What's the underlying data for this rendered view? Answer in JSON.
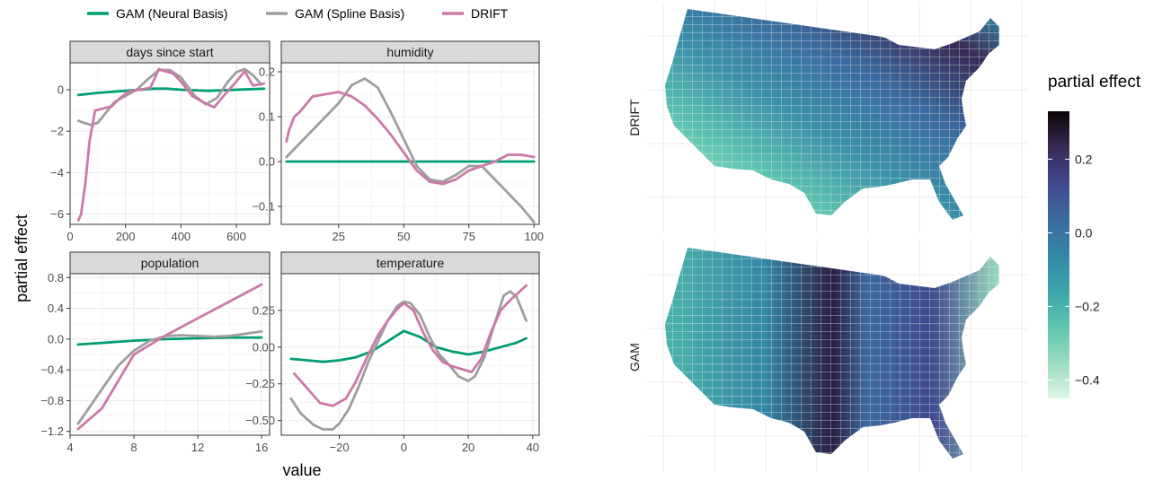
{
  "legend": [
    {
      "label": "GAM (Neural Basis)",
      "color": "#009E73"
    },
    {
      "label": "GAM (Spline Basis)",
      "color": "#9E9E9E"
    },
    {
      "label": "DRIFT",
      "color": "#CC79A7"
    }
  ],
  "axis_titles": {
    "x": "value",
    "y": "partial effect"
  },
  "chart_data": [
    {
      "type": "line",
      "title": "days since start",
      "xlim": [
        0,
        720
      ],
      "ylim": [
        -6.5,
        1.3
      ],
      "xticks": [
        0,
        200,
        400,
        600
      ],
      "xtick_labels": [
        "0",
        "200",
        "400",
        "600"
      ],
      "yticks": [
        0,
        -2,
        -4,
        -6
      ],
      "ytick_labels": [
        "0",
        "−2",
        "−4",
        "−6"
      ],
      "series": [
        {
          "name": "GAM (Neural Basis)",
          "x": [
            30,
            100,
            200,
            300,
            350,
            400,
            500,
            600,
            700
          ],
          "y": [
            -0.25,
            -0.15,
            -0.05,
            0.05,
            0.05,
            0.0,
            -0.05,
            0.0,
            0.05
          ]
        },
        {
          "name": "GAM (Spline Basis)",
          "x": [
            30,
            50,
            75,
            100,
            130,
            160,
            200,
            240,
            280,
            320,
            360,
            400,
            450,
            490,
            530,
            570,
            600,
            630,
            660,
            690
          ],
          "y": [
            -1.5,
            -1.6,
            -1.7,
            -1.6,
            -1.1,
            -0.6,
            -0.3,
            0.0,
            0.5,
            0.95,
            0.95,
            0.6,
            -0.3,
            -0.7,
            -0.4,
            0.4,
            0.85,
            1.0,
            0.7,
            0.25
          ]
        },
        {
          "name": "DRIFT",
          "x": [
            30,
            40,
            55,
            70,
            90,
            120,
            150,
            180,
            210,
            250,
            290,
            320,
            340,
            370,
            400,
            440,
            480,
            520,
            560,
            600,
            630,
            660,
            700
          ],
          "y": [
            -6.3,
            -6.0,
            -4.5,
            -2.5,
            -1.0,
            -0.9,
            -0.8,
            -0.4,
            -0.1,
            0.0,
            0.1,
            1.0,
            0.9,
            0.8,
            0.4,
            -0.3,
            -0.6,
            -0.85,
            -0.2,
            0.4,
            0.9,
            0.2,
            0.3
          ]
        }
      ]
    },
    {
      "type": "line",
      "title": "humidity",
      "xlim": [
        3,
        102
      ],
      "ylim": [
        -0.14,
        0.22
      ],
      "xticks": [
        25,
        50,
        75,
        100
      ],
      "xtick_labels": [
        "25",
        "50",
        "75",
        "100"
      ],
      "yticks": [
        0.2,
        0.1,
        0.0,
        -0.1
      ],
      "ytick_labels": [
        "0.2",
        "0.1",
        "0.0",
        "−0.1"
      ],
      "series": [
        {
          "name": "GAM (Neural Basis)",
          "x": [
            5,
            100
          ],
          "y": [
            0.0,
            0.0
          ]
        },
        {
          "name": "GAM (Spline Basis)",
          "x": [
            5,
            10,
            15,
            20,
            25,
            30,
            35,
            40,
            45,
            50,
            55,
            60,
            65,
            70,
            75,
            80,
            85,
            90,
            95,
            100
          ],
          "y": [
            0.01,
            0.04,
            0.07,
            0.1,
            0.13,
            0.17,
            0.185,
            0.165,
            0.11,
            0.05,
            -0.01,
            -0.04,
            -0.045,
            -0.03,
            -0.01,
            -0.01,
            -0.04,
            -0.07,
            -0.1,
            -0.135
          ]
        },
        {
          "name": "DRIFT",
          "x": [
            5,
            6,
            8,
            10,
            15,
            20,
            25,
            30,
            35,
            40,
            45,
            50,
            55,
            60,
            65,
            70,
            75,
            80,
            85,
            90,
            95,
            100
          ],
          "y": [
            0.045,
            0.07,
            0.1,
            0.11,
            0.145,
            0.15,
            0.155,
            0.145,
            0.125,
            0.095,
            0.06,
            0.02,
            -0.02,
            -0.045,
            -0.05,
            -0.04,
            -0.02,
            -0.01,
            0.0,
            0.015,
            0.015,
            0.01
          ]
        }
      ]
    },
    {
      "type": "line",
      "title": "population",
      "xlim": [
        4,
        16.5
      ],
      "ylim": [
        -1.25,
        0.85
      ],
      "xticks": [
        4,
        8,
        12,
        16
      ],
      "xtick_labels": [
        "4",
        "8",
        "12",
        "16"
      ],
      "yticks": [
        0.8,
        0.4,
        0.0,
        -0.4,
        -0.8,
        -1.2
      ],
      "ytick_labels": [
        "0.8",
        "0.4",
        "0.0",
        "−0.4",
        "−0.8",
        "−1.2"
      ],
      "series": [
        {
          "name": "GAM (Neural Basis)",
          "x": [
            4.5,
            6,
            8,
            10,
            12,
            14,
            16
          ],
          "y": [
            -0.07,
            -0.05,
            -0.02,
            0.0,
            0.01,
            0.02,
            0.02
          ]
        },
        {
          "name": "GAM (Spline Basis)",
          "x": [
            4.5,
            5,
            6,
            7,
            8,
            9,
            10,
            11,
            12,
            13,
            14,
            15,
            16
          ],
          "y": [
            -1.1,
            -0.95,
            -0.65,
            -0.35,
            -0.15,
            -0.02,
            0.04,
            0.05,
            0.04,
            0.03,
            0.04,
            0.07,
            0.1
          ]
        },
        {
          "name": "DRIFT",
          "x": [
            4.5,
            6,
            8,
            10,
            12,
            14,
            16
          ],
          "y": [
            -1.17,
            -0.9,
            -0.2,
            0.05,
            0.27,
            0.49,
            0.71
          ]
        }
      ]
    },
    {
      "type": "line",
      "title": "temperature",
      "xlim": [
        -38,
        42
      ],
      "ylim": [
        -0.6,
        0.5
      ],
      "xticks": [
        -20,
        0,
        20,
        40
      ],
      "xtick_labels": [
        "−20",
        "0",
        "20",
        "40"
      ],
      "yticks": [
        0.25,
        0.0,
        -0.25,
        -0.5
      ],
      "ytick_labels": [
        "0.25",
        "0.00",
        "−0.25",
        "−0.50"
      ],
      "series": [
        {
          "name": "GAM (Neural Basis)",
          "x": [
            -35,
            -30,
            -25,
            -20,
            -15,
            -10,
            -5,
            0,
            5,
            10,
            15,
            20,
            25,
            30,
            35,
            38
          ],
          "y": [
            -0.08,
            -0.09,
            -0.1,
            -0.09,
            -0.07,
            -0.03,
            0.04,
            0.11,
            0.07,
            0.0,
            -0.03,
            -0.05,
            -0.03,
            0.0,
            0.03,
            0.06
          ]
        },
        {
          "name": "GAM (Spline Basis)",
          "x": [
            -35,
            -32,
            -28,
            -25,
            -22,
            -20,
            -17,
            -14,
            -11,
            -8,
            -5,
            -2,
            0,
            2,
            5,
            8,
            11,
            14,
            17,
            20,
            22,
            25,
            28,
            31,
            33,
            35,
            38
          ],
          "y": [
            -0.35,
            -0.45,
            -0.53,
            -0.56,
            -0.56,
            -0.52,
            -0.42,
            -0.27,
            -0.1,
            0.04,
            0.18,
            0.28,
            0.31,
            0.3,
            0.22,
            0.07,
            -0.05,
            -0.12,
            -0.2,
            -0.23,
            -0.2,
            -0.07,
            0.15,
            0.35,
            0.38,
            0.34,
            0.18
          ]
        },
        {
          "name": "DRIFT",
          "x": [
            -34,
            -30,
            -26,
            -22,
            -18,
            -15,
            -11,
            -8,
            -5,
            -2,
            0,
            3,
            6,
            9,
            12,
            15,
            18,
            21,
            24,
            27,
            30,
            33,
            36,
            38
          ],
          "y": [
            -0.18,
            -0.28,
            -0.38,
            -0.4,
            -0.35,
            -0.24,
            -0.05,
            0.08,
            0.18,
            0.26,
            0.3,
            0.25,
            0.1,
            -0.02,
            -0.1,
            -0.13,
            -0.15,
            -0.17,
            -0.08,
            0.1,
            0.25,
            0.32,
            0.38,
            0.42
          ]
        }
      ]
    }
  ],
  "maps": {
    "row_labels": [
      "DRIFT",
      "GAM"
    ],
    "colorbar": {
      "title": "partial effect",
      "ticks": [
        0.2,
        0.0,
        -0.2,
        -0.4
      ],
      "tick_labels": [
        "0.2",
        "0.0",
        "−0.2",
        "−0.4"
      ],
      "range": [
        -0.45,
        0.33
      ],
      "colors": [
        "#DEF5E5",
        "#9ADCC0",
        "#5FC4B0",
        "#3AA5A9",
        "#3487A6",
        "#3B699E",
        "#40498E",
        "#382A54",
        "#0B0405"
      ]
    }
  }
}
